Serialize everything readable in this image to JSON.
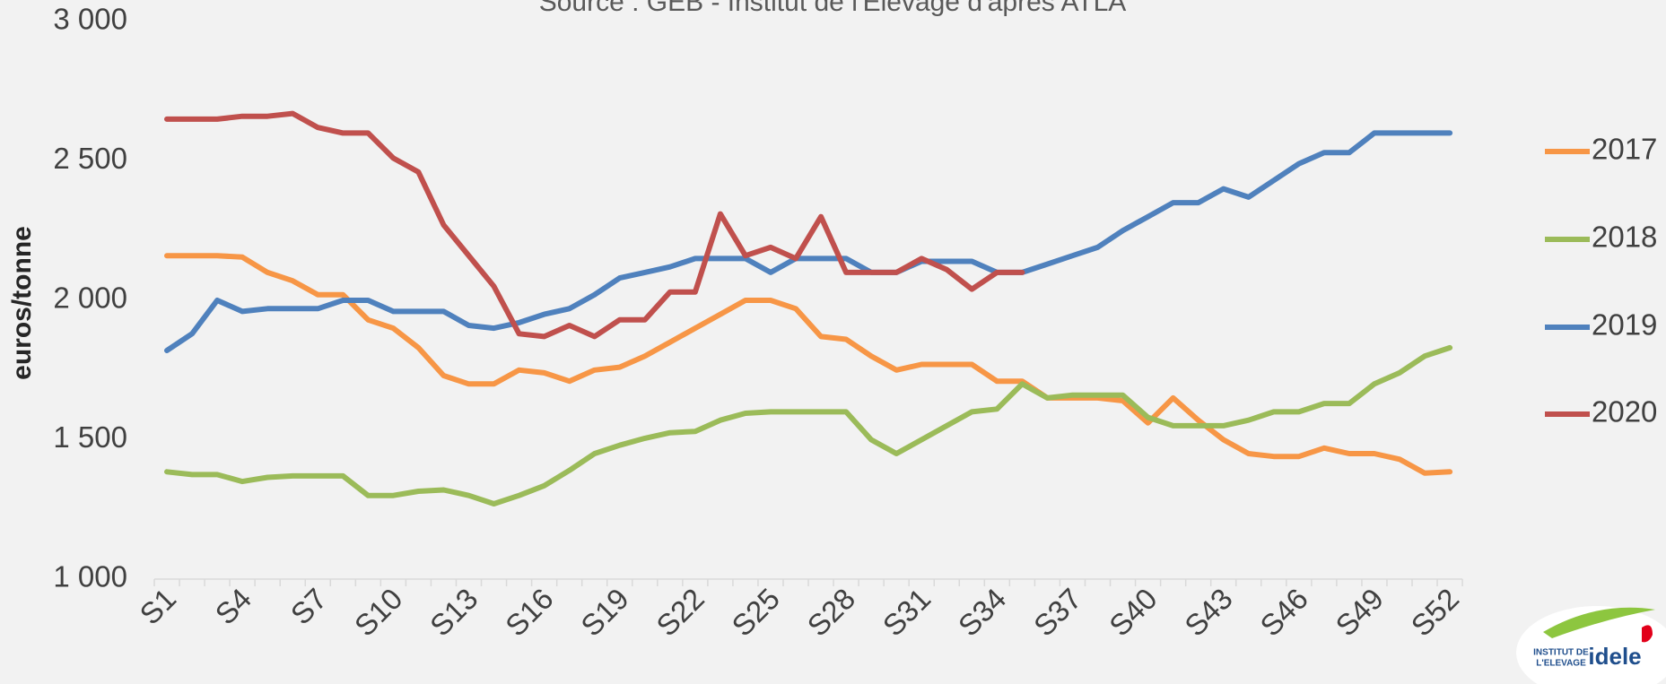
{
  "chart_data": {
    "type": "line",
    "subtitle": "Source : GEB - Institut de l'Elevage d'après ATLA",
    "y_label": "euros/tonne",
    "categories": [
      "S1",
      null,
      null,
      "S4",
      null,
      null,
      "S7",
      null,
      null,
      "S10",
      null,
      null,
      "S13",
      null,
      null,
      "S16",
      null,
      null,
      "S19",
      null,
      null,
      "S22",
      null,
      null,
      "S25",
      null,
      null,
      "S28",
      null,
      null,
      "S31",
      null,
      null,
      "S34",
      null,
      null,
      "S37",
      null,
      null,
      "S40",
      null,
      null,
      "S43",
      null,
      null,
      "S46",
      null,
      null,
      "S49",
      null,
      null,
      "S52"
    ],
    "ylim": [
      1000,
      3000
    ],
    "yticks": [
      {
        "value": 1000,
        "label": "1 000"
      },
      {
        "value": 1500,
        "label": "1 500"
      },
      {
        "value": 2000,
        "label": "2 000"
      },
      {
        "value": 2500,
        "label": "2 500"
      },
      {
        "value": 3000,
        "label": "3 000"
      }
    ],
    "grid": false,
    "legend": "right",
    "series": [
      {
        "name": "2017",
        "color": "#F79646",
        "values": [
          2160,
          2160,
          2160,
          2155,
          2100,
          2070,
          2020,
          2020,
          1930,
          1900,
          1830,
          1730,
          1700,
          1700,
          1750,
          1740,
          1710,
          1750,
          1760,
          1800,
          1850,
          1900,
          1950,
          2000,
          2000,
          1970,
          1870,
          1860,
          1800,
          1750,
          1770,
          1770,
          1770,
          1710,
          1710,
          1650,
          1650,
          1650,
          1640,
          1560,
          1650,
          1570,
          1500,
          1450,
          1440,
          1440,
          1470,
          1450,
          1450,
          1430,
          1380,
          1385
        ]
      },
      {
        "name": "2018",
        "color": "#9BBB59",
        "values": [
          1385,
          1375,
          1375,
          1350,
          1365,
          1370,
          1370,
          1370,
          1300,
          1300,
          1315,
          1320,
          1300,
          1270,
          1300,
          1335,
          1390,
          1450,
          1480,
          1505,
          1525,
          1530,
          1570,
          1595,
          1600,
          1600,
          1600,
          1600,
          1500,
          1450,
          1500,
          1550,
          1600,
          1610,
          1700,
          1650,
          1660,
          1660,
          1660,
          1580,
          1550,
          1550,
          1550,
          1570,
          1600,
          1600,
          1630,
          1630,
          1700,
          1740,
          1800,
          1830
        ]
      },
      {
        "name": "2019",
        "color": "#4F81BD",
        "values": [
          1820,
          1880,
          2000,
          1960,
          1970,
          1970,
          1970,
          2000,
          2000,
          1960,
          1960,
          1960,
          1910,
          1900,
          1920,
          1950,
          1970,
          2020,
          2080,
          2100,
          2120,
          2150,
          2150,
          2150,
          2100,
          2150,
          2150,
          2150,
          2100,
          2100,
          2140,
          2140,
          2140,
          2100,
          2100,
          2130,
          2160,
          2190,
          2250,
          2300,
          2350,
          2350,
          2400,
          2370,
          2430,
          2490,
          2530,
          2530,
          2600,
          2600,
          2600,
          2600
        ]
      },
      {
        "name": "2020",
        "color": "#C0504D",
        "values": [
          2650,
          2650,
          2650,
          2660,
          2660,
          2670,
          2620,
          2600,
          2600,
          2510,
          2460,
          2270,
          2160,
          2050,
          1880,
          1870,
          1910,
          1870,
          1930,
          1930,
          2030,
          2030,
          2310,
          2160,
          2190,
          2150,
          2300,
          2100,
          2100,
          2100,
          2150,
          2110,
          2040,
          2100,
          2100,
          null,
          null,
          null,
          null,
          null,
          null,
          null,
          null,
          null,
          null,
          null,
          null,
          null,
          null,
          null,
          null,
          null
        ]
      }
    ]
  },
  "logo": {
    "lines": [
      "INSTITUT DE",
      "L'ELEVAGE",
      "idele"
    ]
  }
}
